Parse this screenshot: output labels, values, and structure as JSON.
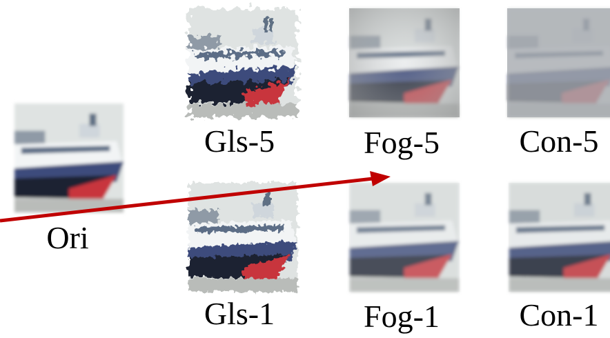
{
  "panels": [
    {
      "label": "Ori"
    },
    {
      "label": "Gls-5"
    },
    {
      "label": "Fog-5"
    },
    {
      "label": "Con-5"
    },
    {
      "label": "Gls-1"
    },
    {
      "label": "Fog-1"
    },
    {
      "label": "Con-1"
    }
  ]
}
